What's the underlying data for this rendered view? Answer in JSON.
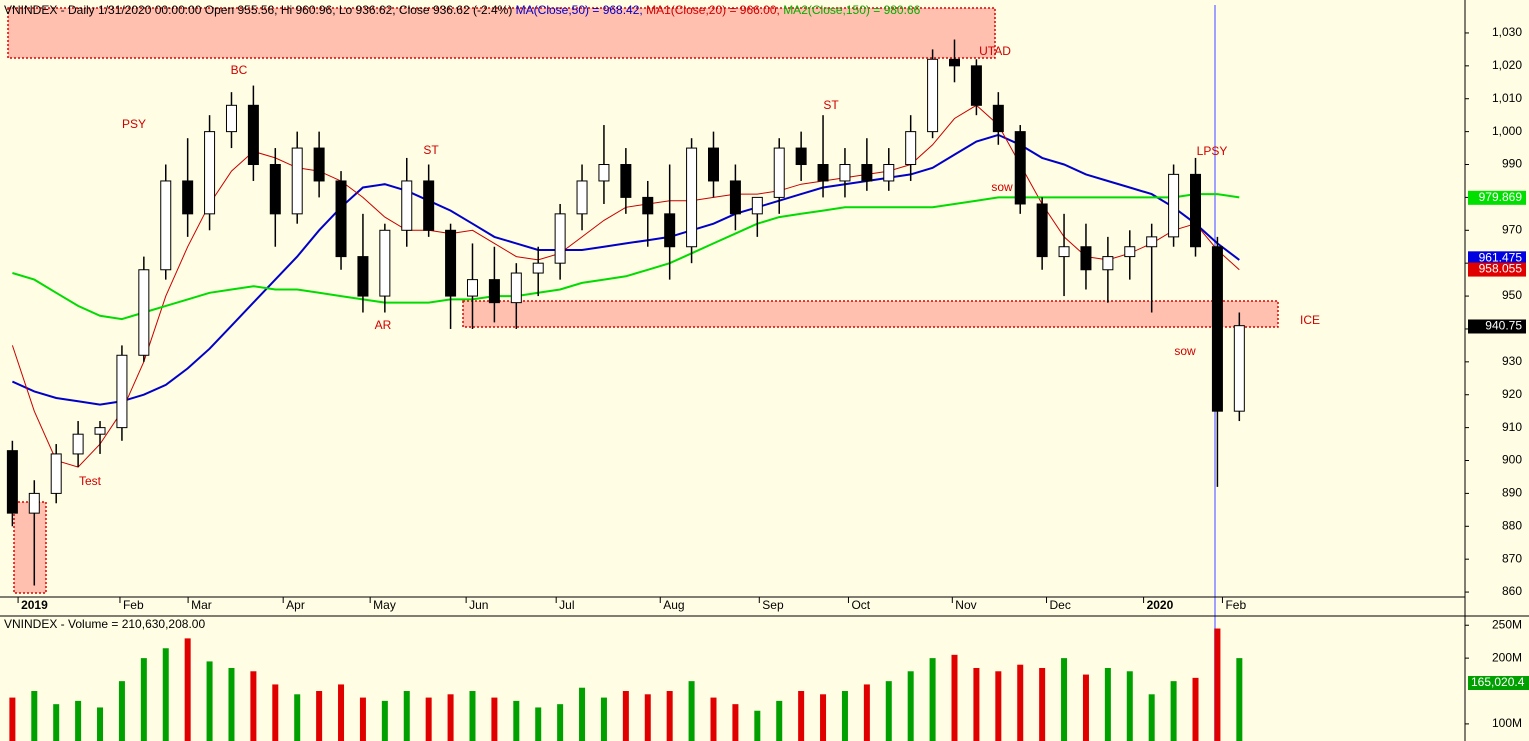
{
  "chart_data": {
    "type": "candlestick",
    "header": [
      "VNINDEX - Daily 1/31/2020 00:00:00 Open 955.56, Hi 960.96, Lo 936.62, Close 936.62 (-2.4%)",
      "MA(Close,50) = 968.42,",
      "MA1(Close,20) = 966.00,",
      "MA2(Close,150) = 980.66"
    ],
    "header_colors": [
      "#000000",
      "#0000c8",
      "#d00000",
      "#00b000"
    ],
    "open": [
      903,
      884,
      890,
      902,
      908,
      910,
      932,
      958,
      985,
      975,
      1000,
      1008,
      990,
      975,
      995,
      985,
      962,
      950,
      970,
      985,
      970,
      950,
      955,
      948,
      957,
      960,
      975,
      985,
      990,
      980,
      975,
      965,
      995,
      985,
      975,
      980,
      995,
      990,
      985,
      990,
      985,
      990,
      1000,
      1022,
      1020,
      1008,
      1000,
      978,
      962,
      965,
      958,
      962,
      965,
      968,
      987,
      965,
      915
    ],
    "high": [
      906,
      894,
      905,
      912,
      912,
      935,
      962,
      990,
      998,
      1005,
      1012,
      1014,
      995,
      1000,
      1000,
      988,
      975,
      972,
      992,
      990,
      972,
      966,
      965,
      960,
      965,
      978,
      990,
      1002,
      995,
      985,
      990,
      998,
      1000,
      990,
      980,
      998,
      1000,
      1005,
      995,
      998,
      995,
      1005,
      1025,
      1028,
      1022,
      1012,
      1002,
      980,
      975,
      972,
      968,
      970,
      972,
      990,
      992,
      968,
      945
    ],
    "low": [
      880,
      862,
      887,
      898,
      902,
      906,
      930,
      955,
      968,
      970,
      995,
      985,
      965,
      972,
      980,
      958,
      945,
      945,
      965,
      968,
      940,
      940,
      942,
      940,
      950,
      955,
      970,
      978,
      975,
      965,
      955,
      960,
      980,
      970,
      968,
      975,
      985,
      980,
      980,
      982,
      982,
      985,
      998,
      1015,
      1005,
      996,
      975,
      958,
      950,
      952,
      948,
      955,
      945,
      965,
      962,
      892,
      912
    ],
    "close": [
      884,
      890,
      902,
      908,
      910,
      932,
      958,
      985,
      975,
      1000,
      1008,
      990,
      975,
      995,
      985,
      962,
      950,
      970,
      985,
      970,
      950,
      955,
      948,
      957,
      960,
      975,
      985,
      990,
      980,
      975,
      965,
      995,
      985,
      975,
      980,
      995,
      990,
      985,
      990,
      985,
      990,
      1000,
      1022,
      1020,
      1008,
      1000,
      978,
      962,
      965,
      958,
      962,
      965,
      968,
      987,
      965,
      915,
      941
    ],
    "up_color": "#ffffff",
    "down_color": "#000000",
    "series": [
      {
        "color": "#0000c8",
        "values": [
          924,
          921,
          919,
          918,
          917,
          918,
          920,
          923,
          928,
          934,
          941,
          948,
          955,
          962,
          970,
          977,
          983,
          984,
          982,
          979,
          976,
          972,
          968,
          966,
          964,
          964,
          964,
          965,
          966,
          967,
          968,
          970,
          972,
          975,
          977,
          979,
          981,
          983,
          984,
          985,
          986,
          987,
          989,
          993,
          997,
          999,
          996,
          992,
          990,
          987,
          985,
          983,
          981,
          977,
          972,
          966,
          961
        ]
      },
      {
        "color": "#c80000",
        "values": [
          935,
          915,
          900,
          898,
          905,
          915,
          930,
          950,
          965,
          978,
          988,
          994,
          992,
          989,
          988,
          985,
          980,
          974,
          970,
          970,
          969,
          970,
          966,
          962,
          961,
          963,
          968,
          973,
          977,
          978,
          979,
          979,
          980,
          981,
          981,
          982,
          984,
          985,
          986,
          987,
          988,
          990,
          996,
          1004,
          1008,
          1002,
          990,
          978,
          968,
          962,
          961,
          963,
          966,
          970,
          972,
          964,
          958
        ]
      },
      {
        "color": "#00dc00",
        "values": [
          957,
          955,
          951,
          947,
          944,
          943,
          945,
          947,
          949,
          951,
          952,
          953,
          952,
          952,
          951,
          950,
          949,
          948,
          948,
          948,
          949,
          949,
          950,
          950,
          951,
          952,
          954,
          955,
          956,
          958,
          960,
          963,
          966,
          969,
          972,
          974,
          975,
          976,
          977,
          977,
          977,
          977,
          977,
          978,
          979,
          980,
          980,
          980,
          980,
          980,
          980,
          980,
          980,
          980,
          981,
          981,
          980
        ]
      }
    ],
    "xlim": [
      -0.2,
      66.3
    ],
    "xticks": [
      {
        "value": 0.26,
        "label": "2019"
      },
      {
        "value": 4.91,
        "label": "Feb"
      },
      {
        "value": 8.02,
        "label": "Mar"
      },
      {
        "value": 12.36,
        "label": "Apr"
      },
      {
        "value": 16.33,
        "label": "May"
      },
      {
        "value": 20.71,
        "label": "Jun"
      },
      {
        "value": 24.82,
        "label": "Jul"
      },
      {
        "value": 29.57,
        "label": "Aug"
      },
      {
        "value": 34.09,
        "label": "Sep"
      },
      {
        "value": 38.16,
        "label": "Oct"
      },
      {
        "value": 42.9,
        "label": "Nov"
      },
      {
        "value": 47.2,
        "label": "Dec"
      },
      {
        "value": 51.63,
        "label": "2020"
      },
      {
        "value": 55.23,
        "label": "Feb"
      }
    ],
    "ylim": [
      858.5,
      1038.5
    ],
    "yticks": [
      860,
      870,
      880,
      890,
      900,
      910,
      920,
      930,
      940,
      950,
      960,
      970,
      980,
      990,
      {
        "value": 1000,
        "label": "1,000"
      },
      {
        "value": 1010,
        "label": "1,010"
      },
      {
        "value": 1020,
        "label": "1,020"
      },
      {
        "value": 1030,
        "label": "1,030"
      }
    ],
    "price_tags": [
      {
        "value": 979.869,
        "color": "#00e000"
      },
      {
        "value": 961.475,
        "color": "#0000e0"
      },
      {
        "value": 958.055,
        "color": "#e00000"
      },
      {
        "value": 940.75,
        "color": "#000000"
      }
    ],
    "annotations": [
      "Test",
      "PSY",
      "BC",
      "AR",
      "ST",
      "ST",
      "UTAD",
      "sow",
      "LPSY",
      "ICE",
      "sow"
    ],
    "volume": {
      "title": "VNINDEX - Volume = 210,630,208.00",
      "values": [
        140,
        150,
        130,
        135,
        125,
        165,
        200,
        215,
        230,
        195,
        185,
        180,
        160,
        145,
        150,
        160,
        140,
        135,
        150,
        140,
        145,
        150,
        140,
        135,
        125,
        130,
        155,
        140,
        150,
        145,
        150,
        165,
        140,
        130,
        120,
        135,
        150,
        145,
        150,
        160,
        165,
        180,
        200,
        205,
        185,
        180,
        190,
        185,
        200,
        175,
        185,
        180,
        145,
        165,
        170,
        245,
        200
      ],
      "ylim": [
        74,
        261
      ],
      "yticks": [
        {
          "value": 100,
          "label": "100M"
        },
        {
          "value": 200,
          "label": "200M"
        },
        {
          "value": 250,
          "label": "250M"
        }
      ],
      "last_label": "165,020.4",
      "up_color": "#00a000",
      "down_color": "#e00000"
    }
  }
}
